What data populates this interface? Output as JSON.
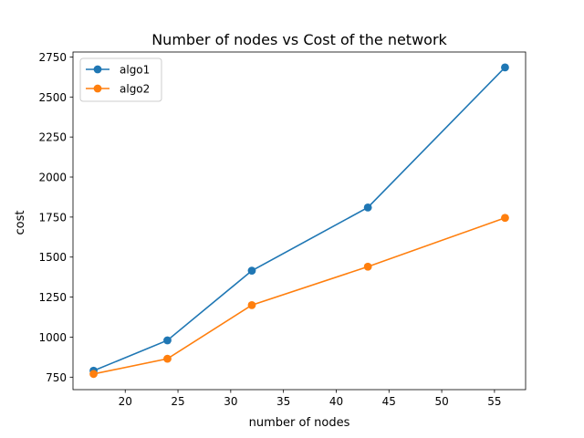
{
  "chart_data": {
    "type": "line",
    "title": "Number of nodes vs Cost of the network",
    "xlabel": "number of nodes",
    "ylabel": "cost",
    "xlim": [
      15.05,
      57.95
    ],
    "ylim": [
      672,
      2781
    ],
    "xticks": [
      20,
      25,
      30,
      35,
      40,
      45,
      50,
      55
    ],
    "yticks": [
      750,
      1000,
      1250,
      1500,
      1750,
      2000,
      2250,
      2500,
      2750
    ],
    "grid": false,
    "legend": "top-left",
    "x": [
      17,
      24,
      32,
      43,
      56
    ],
    "series": [
      {
        "name": "algo1",
        "color": "#1f77b4",
        "marker": "circle",
        "values": [
          790,
          980,
          1415,
          1810,
          2685
        ]
      },
      {
        "name": "algo2",
        "color": "#ff7f0e",
        "marker": "circle",
        "values": [
          770,
          865,
          1200,
          1440,
          1745
        ]
      }
    ]
  }
}
